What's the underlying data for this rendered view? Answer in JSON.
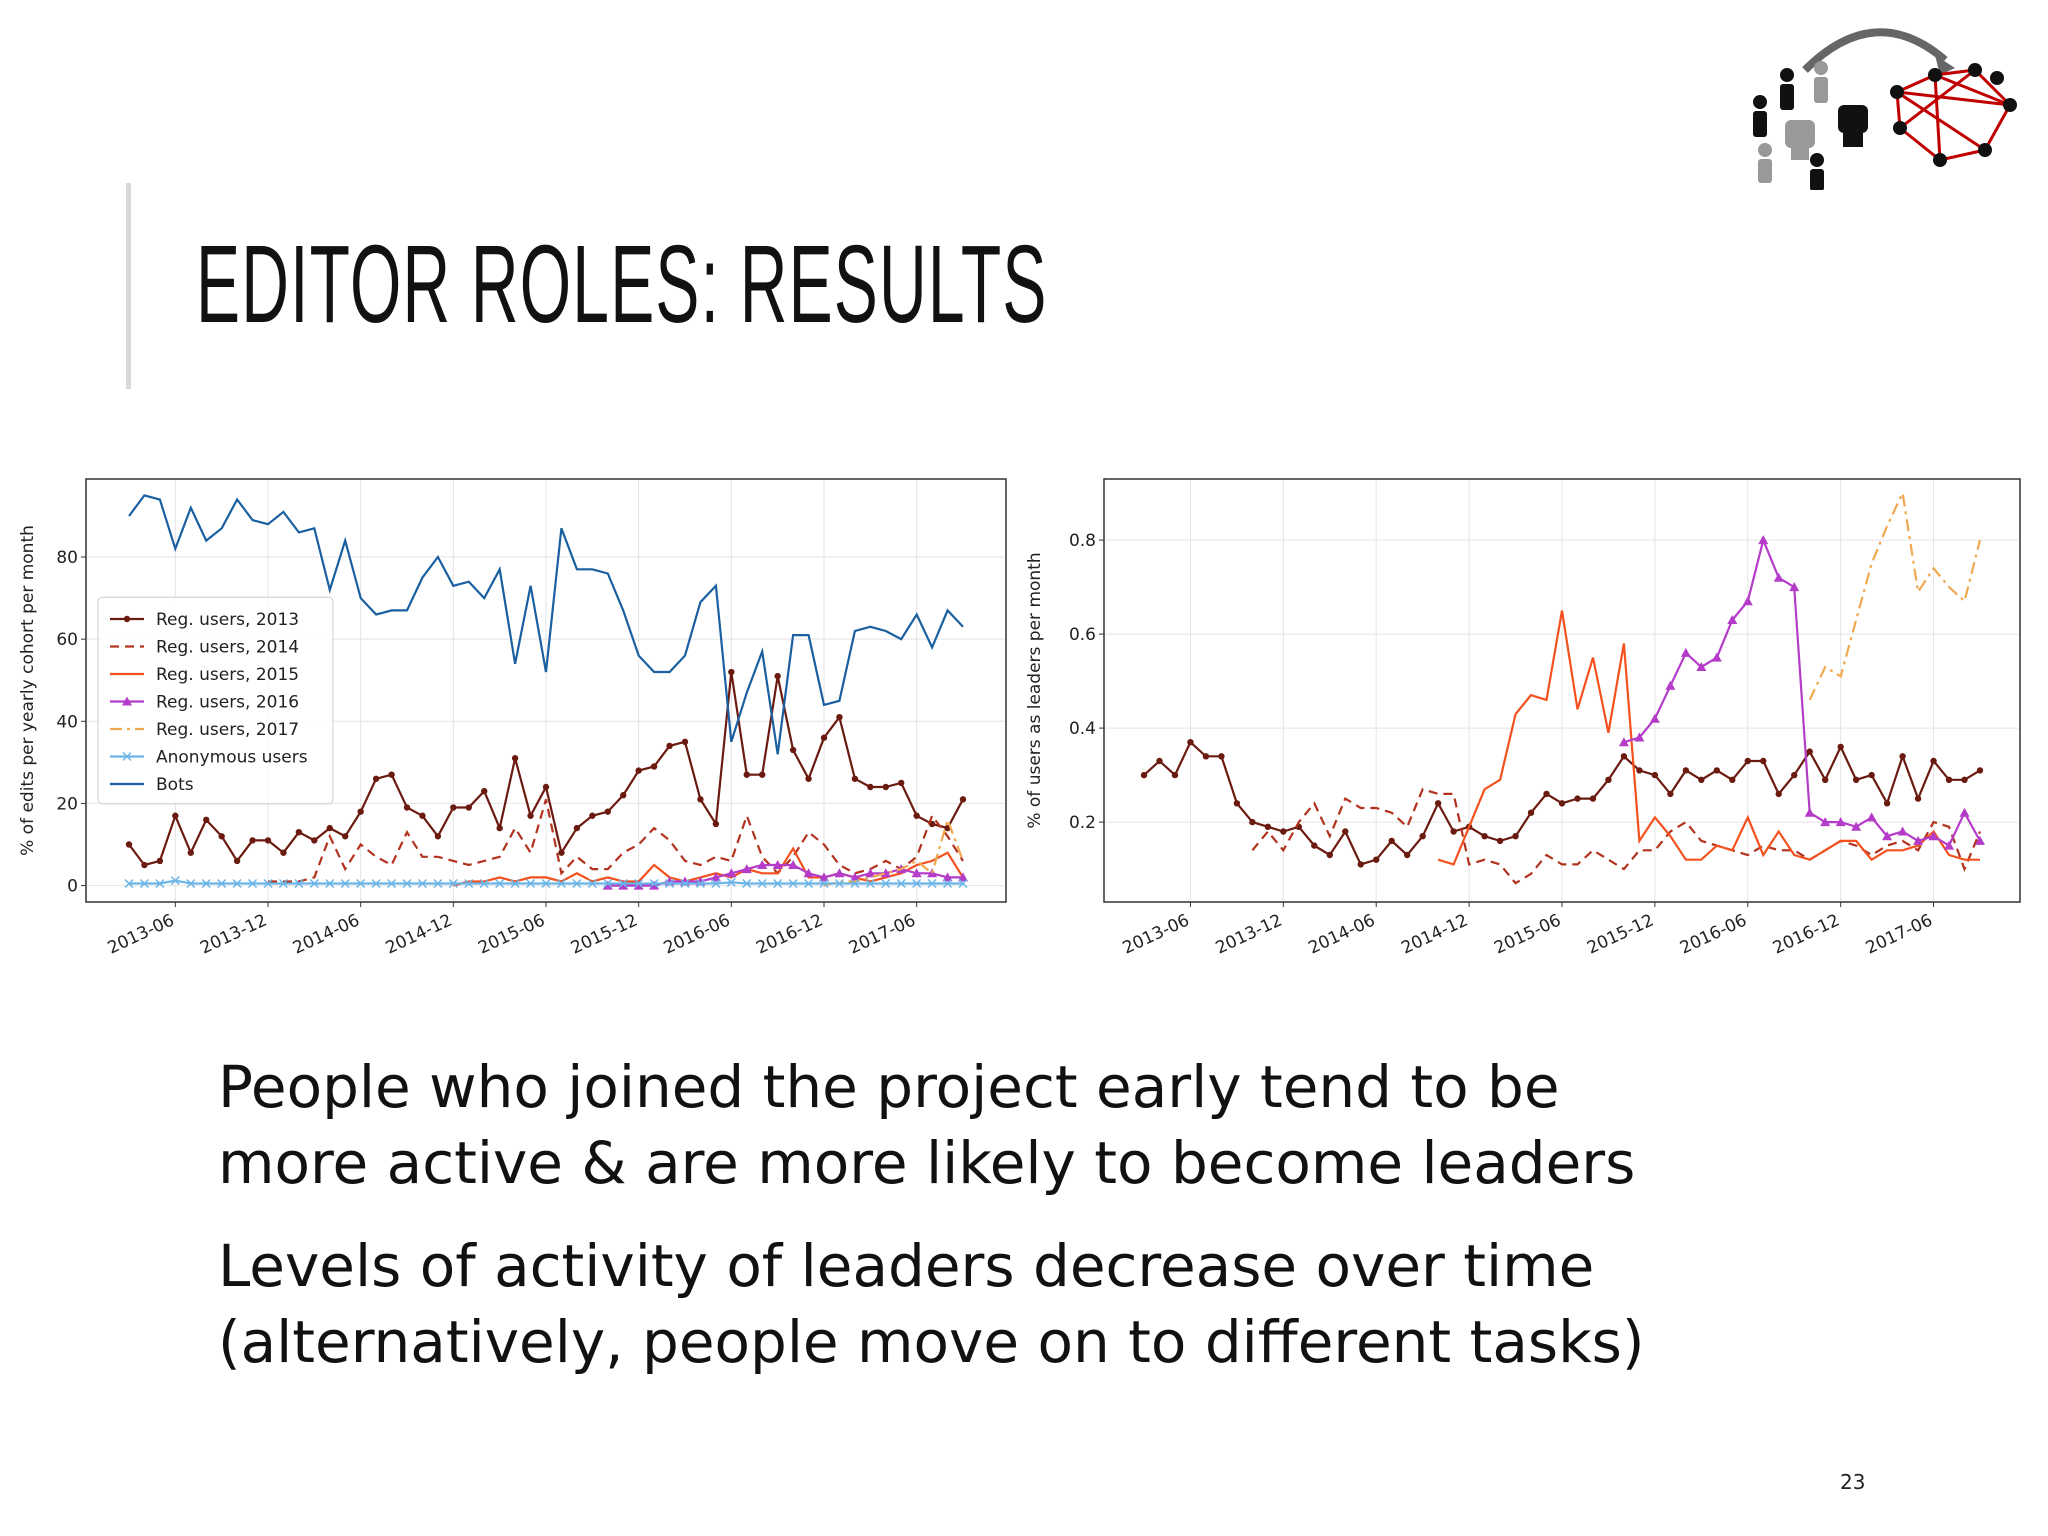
{
  "slide_title": "EDITOR ROLES: RESULTS",
  "bullets": [
    [
      "People who joined the project early tend to be",
      "more active & are more likely to become leaders"
    ],
    [
      "Levels of activity of leaders decrease over time",
      "(alternatively, people move on to different tasks)"
    ]
  ],
  "page_number": "23",
  "chart_data": [
    {
      "type": "line",
      "ylabel": "% of edits per yearly cohort per month",
      "ylim": [
        -4,
        99
      ],
      "yticks": [
        0,
        20,
        40,
        60,
        80
      ],
      "grid": true,
      "legend": "center left",
      "x": [
        "2013-03",
        "2013-04",
        "2013-05",
        "2013-06",
        "2013-07",
        "2013-08",
        "2013-09",
        "2013-10",
        "2013-11",
        "2013-12",
        "2014-01",
        "2014-02",
        "2014-03",
        "2014-04",
        "2014-05",
        "2014-06",
        "2014-07",
        "2014-08",
        "2014-09",
        "2014-10",
        "2014-11",
        "2014-12",
        "2015-01",
        "2015-02",
        "2015-03",
        "2015-04",
        "2015-05",
        "2015-06",
        "2015-07",
        "2015-08",
        "2015-09",
        "2015-10",
        "2015-11",
        "2015-12",
        "2016-01",
        "2016-02",
        "2016-03",
        "2016-04",
        "2016-05",
        "2016-06",
        "2016-07",
        "2016-08",
        "2016-09",
        "2016-10",
        "2016-11",
        "2016-12",
        "2017-01",
        "2017-02",
        "2017-03",
        "2017-04",
        "2017-05",
        "2017-06",
        "2017-07",
        "2017-08",
        "2017-09"
      ],
      "xticks": [
        "2013-06",
        "2013-12",
        "2014-06",
        "2014-12",
        "2015-06",
        "2015-12",
        "2016-06",
        "2016-12",
        "2017-06"
      ],
      "series": [
        {
          "name": "Reg. users, 2013",
          "color": "#6b1a10",
          "linestyle": "solid",
          "marker": "dot",
          "values": [
            10,
            5,
            6,
            17,
            8,
            16,
            12,
            6,
            11,
            11,
            8,
            13,
            11,
            14,
            12,
            18,
            26,
            27,
            19,
            17,
            12,
            19,
            19,
            23,
            14,
            31,
            17,
            24,
            8,
            14,
            17,
            18,
            22,
            28,
            29,
            34,
            35,
            21,
            15,
            52,
            27,
            27,
            51,
            33,
            26,
            36,
            41,
            26,
            24,
            24,
            25,
            17,
            15,
            14,
            21
          ]
        },
        {
          "name": "Reg. users, 2014",
          "color": "#b2321e",
          "linestyle": "dashed",
          "values": [
            null,
            null,
            null,
            null,
            null,
            null,
            null,
            null,
            null,
            1,
            1,
            1,
            2,
            12,
            4,
            10,
            7,
            5,
            13,
            7,
            7,
            6,
            5,
            6,
            7,
            14,
            8,
            21,
            3,
            7,
            4,
            4,
            8,
            10,
            14,
            11,
            6,
            5,
            7,
            6,
            17,
            7,
            3,
            7,
            13,
            10,
            5,
            3,
            4,
            6,
            4,
            7,
            17,
            12,
            6
          ]
        },
        {
          "name": "Reg. users, 2015",
          "color": "#f4511e",
          "linestyle": "solid",
          "values": [
            null,
            null,
            null,
            null,
            null,
            null,
            null,
            null,
            null,
            null,
            null,
            null,
            null,
            null,
            null,
            null,
            null,
            null,
            null,
            null,
            null,
            0,
            1,
            1,
            2,
            1,
            2,
            2,
            1,
            3,
            1,
            2,
            1,
            1,
            5,
            2,
            1,
            2,
            3,
            2,
            4,
            3,
            3,
            9,
            2,
            2,
            3,
            2,
            1,
            2,
            3,
            5,
            6,
            8,
            2
          ]
        },
        {
          "name": "Reg. users, 2016",
          "color": "#b43cc8",
          "linestyle": "solid",
          "marker": "triangle",
          "values": [
            null,
            null,
            null,
            null,
            null,
            null,
            null,
            null,
            null,
            null,
            null,
            null,
            null,
            null,
            null,
            null,
            null,
            null,
            null,
            null,
            null,
            null,
            null,
            null,
            null,
            null,
            null,
            null,
            null,
            null,
            null,
            0,
            0,
            0,
            0,
            1,
            1,
            1,
            2,
            3,
            4,
            5,
            5,
            5,
            3,
            2,
            3,
            2,
            3,
            3,
            4,
            3,
            3,
            2,
            2
          ]
        },
        {
          "name": "Reg. users, 2017",
          "color": "#f0a850",
          "linestyle": "dashdot",
          "values": [
            null,
            null,
            null,
            null,
            null,
            null,
            null,
            null,
            null,
            null,
            null,
            null,
            null,
            null,
            null,
            null,
            null,
            null,
            null,
            null,
            null,
            null,
            null,
            null,
            null,
            null,
            null,
            null,
            null,
            null,
            null,
            null,
            null,
            null,
            null,
            null,
            null,
            null,
            null,
            null,
            null,
            null,
            null,
            null,
            null,
            0,
            1,
            1,
            2,
            3,
            4,
            6,
            3,
            16,
            6
          ]
        },
        {
          "name": "Anonymous users",
          "color": "#6ab4e8",
          "linestyle": "solid",
          "marker": "x",
          "values": [
            0.5,
            0.5,
            0.5,
            1.2,
            0.5,
            0.5,
            0.5,
            0.5,
            0.5,
            0.5,
            0.5,
            0.5,
            0.5,
            0.5,
            0.5,
            0.5,
            0.5,
            0.5,
            0.5,
            0.5,
            0.5,
            0.5,
            0.5,
            0.5,
            0.5,
            0.5,
            0.5,
            0.5,
            0.5,
            0.5,
            0.5,
            0.5,
            0.5,
            0.5,
            0.5,
            0.5,
            0.5,
            0.5,
            0.5,
            0.8,
            0.5,
            0.5,
            0.5,
            0.5,
            0.5,
            0.5,
            0.5,
            0.5,
            0.5,
            0.5,
            0.5,
            0.5,
            0.5,
            0.5,
            0.5
          ]
        },
        {
          "name": "Bots",
          "color": "#1a5fa0",
          "linestyle": "solid",
          "values": [
            90,
            95,
            94,
            82,
            92,
            84,
            87,
            94,
            89,
            88,
            91,
            86,
            87,
            72,
            84,
            70,
            66,
            67,
            67,
            75,
            80,
            73,
            74,
            70,
            77,
            54,
            73,
            52,
            87,
            77,
            77,
            76,
            67,
            56,
            52,
            52,
            56,
            69,
            73,
            35,
            47,
            57,
            32,
            61,
            61,
            44,
            45,
            62,
            63,
            62,
            60,
            66,
            58,
            67,
            63
          ]
        }
      ]
    },
    {
      "type": "line",
      "ylabel": "% of users as leaders per month",
      "ylim": [
        0.03,
        0.93
      ],
      "yticks": [
        0.2,
        0.4,
        0.6,
        0.8
      ],
      "grid": true,
      "x": [
        "2013-03",
        "2013-04",
        "2013-05",
        "2013-06",
        "2013-07",
        "2013-08",
        "2013-09",
        "2013-10",
        "2013-11",
        "2013-12",
        "2014-01",
        "2014-02",
        "2014-03",
        "2014-04",
        "2014-05",
        "2014-06",
        "2014-07",
        "2014-08",
        "2014-09",
        "2014-10",
        "2014-11",
        "2014-12",
        "2015-01",
        "2015-02",
        "2015-03",
        "2015-04",
        "2015-05",
        "2015-06",
        "2015-07",
        "2015-08",
        "2015-09",
        "2015-10",
        "2015-11",
        "2015-12",
        "2016-01",
        "2016-02",
        "2016-03",
        "2016-04",
        "2016-05",
        "2016-06",
        "2016-07",
        "2016-08",
        "2016-09",
        "2016-10",
        "2016-11",
        "2016-12",
        "2017-01",
        "2017-02",
        "2017-03",
        "2017-04",
        "2017-05",
        "2017-06",
        "2017-07",
        "2017-08",
        "2017-09"
      ],
      "xticks": [
        "2013-06",
        "2013-12",
        "2014-06",
        "2014-12",
        "2015-06",
        "2015-12",
        "2016-06",
        "2016-12",
        "2017-06"
      ],
      "series": [
        {
          "color": "#6b1a10",
          "linestyle": "solid",
          "marker": "dot",
          "values": [
            0.3,
            0.33,
            0.3,
            0.37,
            0.34,
            0.34,
            0.24,
            0.2,
            0.19,
            0.18,
            0.19,
            0.15,
            0.13,
            0.18,
            0.11,
            0.12,
            0.16,
            0.13,
            0.17,
            0.24,
            0.18,
            0.19,
            0.17,
            0.16,
            0.17,
            0.22,
            0.26,
            0.24,
            0.25,
            0.25,
            0.29,
            0.34,
            0.31,
            0.3,
            0.26,
            0.31,
            0.29,
            0.31,
            0.29,
            0.33,
            0.33,
            0.26,
            0.3,
            0.35,
            0.29,
            0.36,
            0.29,
            0.3,
            0.24,
            0.34,
            0.25,
            0.33,
            0.29,
            0.29,
            0.31
          ]
        },
        {
          "color": "#b2321e",
          "linestyle": "dashed",
          "values": [
            null,
            null,
            null,
            null,
            null,
            null,
            null,
            0.14,
            0.18,
            0.14,
            0.2,
            0.24,
            0.17,
            0.25,
            0.23,
            0.23,
            0.22,
            0.19,
            0.27,
            0.26,
            0.26,
            0.11,
            0.12,
            0.11,
            0.07,
            0.09,
            0.13,
            0.11,
            0.11,
            0.14,
            0.12,
            0.1,
            0.14,
            0.14,
            0.18,
            0.2,
            0.16,
            0.15,
            0.14,
            0.13,
            0.15,
            0.14,
            0.14,
            0.12,
            0.14,
            0.16,
            0.15,
            0.13,
            0.15,
            0.16,
            0.14,
            0.2,
            0.19,
            0.1,
            0.18
          ]
        },
        {
          "color": "#f4511e",
          "linestyle": "solid",
          "values": [
            null,
            null,
            null,
            null,
            null,
            null,
            null,
            null,
            null,
            null,
            null,
            null,
            null,
            null,
            null,
            null,
            null,
            null,
            null,
            0.12,
            0.11,
            0.19,
            0.27,
            0.29,
            0.43,
            0.47,
            0.46,
            0.65,
            0.44,
            0.55,
            0.39,
            0.58,
            0.16,
            0.21,
            0.17,
            0.12,
            0.12,
            0.15,
            0.14,
            0.21,
            0.13,
            0.18,
            0.13,
            0.12,
            0.14,
            0.16,
            0.16,
            0.12,
            0.14,
            0.14,
            0.15,
            0.18,
            0.13,
            0.12,
            0.12
          ]
        },
        {
          "color": "#b43cc8",
          "linestyle": "solid",
          "marker": "triangle",
          "values": [
            null,
            null,
            null,
            null,
            null,
            null,
            null,
            null,
            null,
            null,
            null,
            null,
            null,
            null,
            null,
            null,
            null,
            null,
            null,
            null,
            null,
            null,
            null,
            null,
            null,
            null,
            null,
            null,
            null,
            null,
            null,
            0.37,
            0.38,
            0.42,
            0.49,
            0.56,
            0.53,
            0.55,
            0.63,
            0.67,
            0.8,
            0.72,
            0.7,
            0.22,
            0.2,
            0.2,
            0.19,
            0.21,
            0.17,
            0.18,
            0.16,
            0.17,
            0.15,
            0.22,
            0.16
          ]
        },
        {
          "color": "#f0a850",
          "linestyle": "dashdot",
          "values": [
            null,
            null,
            null,
            null,
            null,
            null,
            null,
            null,
            null,
            null,
            null,
            null,
            null,
            null,
            null,
            null,
            null,
            null,
            null,
            null,
            null,
            null,
            null,
            null,
            null,
            null,
            null,
            null,
            null,
            null,
            null,
            null,
            null,
            null,
            null,
            null,
            null,
            null,
            null,
            null,
            null,
            null,
            null,
            0.46,
            0.53,
            0.51,
            0.63,
            0.75,
            0.83,
            0.9,
            0.69,
            0.74,
            0.7,
            0.67,
            0.8
          ]
        }
      ]
    }
  ]
}
